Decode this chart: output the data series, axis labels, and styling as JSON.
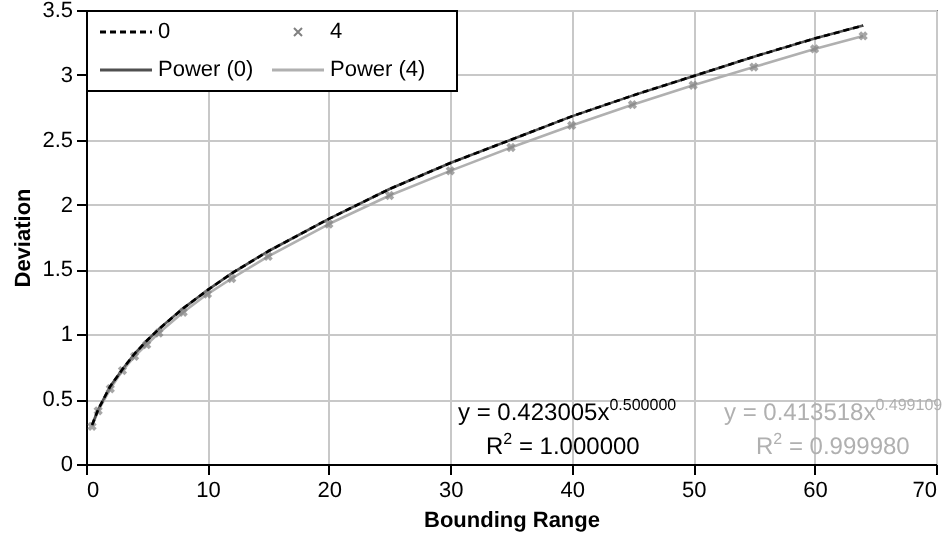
{
  "chart_data": {
    "type": "line",
    "xlabel": "Bounding Range",
    "ylabel": "Deviation",
    "x": [
      0.5,
      1,
      2,
      3,
      4,
      5,
      6,
      8,
      10,
      12,
      15,
      20,
      25,
      30,
      35,
      40,
      45,
      50,
      55,
      60,
      64
    ],
    "series": [
      {
        "name": "0",
        "color": "#000000",
        "line_style": "dashed",
        "marker": "none",
        "values": [
          0.3,
          0.42,
          0.6,
          0.73,
          0.85,
          0.95,
          1.04,
          1.2,
          1.34,
          1.47,
          1.64,
          1.89,
          2.12,
          2.32,
          2.5,
          2.68,
          2.84,
          2.99,
          3.14,
          3.28,
          3.38
        ]
      },
      {
        "name": "4",
        "type": "scatter",
        "color": "#808080",
        "marker": "cross",
        "values": [
          0.29,
          0.41,
          0.58,
          0.72,
          0.83,
          0.92,
          1.01,
          1.17,
          1.31,
          1.43,
          1.6,
          1.85,
          2.07,
          2.26,
          2.44,
          2.61,
          2.77,
          2.92,
          3.06,
          3.2,
          3.3
        ]
      },
      {
        "name": "Power (0)",
        "color": "#505050",
        "line_style": "solid",
        "marker": "none",
        "values": [
          0.3,
          0.42,
          0.6,
          0.73,
          0.85,
          0.95,
          1.04,
          1.2,
          1.34,
          1.47,
          1.64,
          1.89,
          2.12,
          2.32,
          2.5,
          2.68,
          2.84,
          2.99,
          3.14,
          3.28,
          3.38
        ]
      },
      {
        "name": "Power (4)",
        "color": "#b0b0b0",
        "line_style": "solid",
        "marker": "none",
        "values": [
          0.29,
          0.41,
          0.58,
          0.72,
          0.83,
          0.92,
          1.01,
          1.17,
          1.31,
          1.43,
          1.6,
          1.85,
          2.07,
          2.26,
          2.44,
          2.61,
          2.77,
          2.92,
          3.06,
          3.2,
          3.3
        ]
      }
    ],
    "xlim": [
      0,
      70
    ],
    "xticks": [
      0,
      10,
      20,
      30,
      40,
      50,
      60,
      70
    ],
    "ylim": [
      0,
      3.5
    ],
    "yticks": [
      0,
      0.5,
      1,
      1.5,
      2,
      2.5,
      3,
      3.5
    ],
    "grid": true,
    "legend": "top left",
    "annotations": [
      "y = 0.423005x$^{0.500000}$",
      "R$^{2}$ = 1.000000",
      "y = 0.413518x$^{0.499109}$",
      "R$^{2}$ = 0.999980"
    ]
  }
}
